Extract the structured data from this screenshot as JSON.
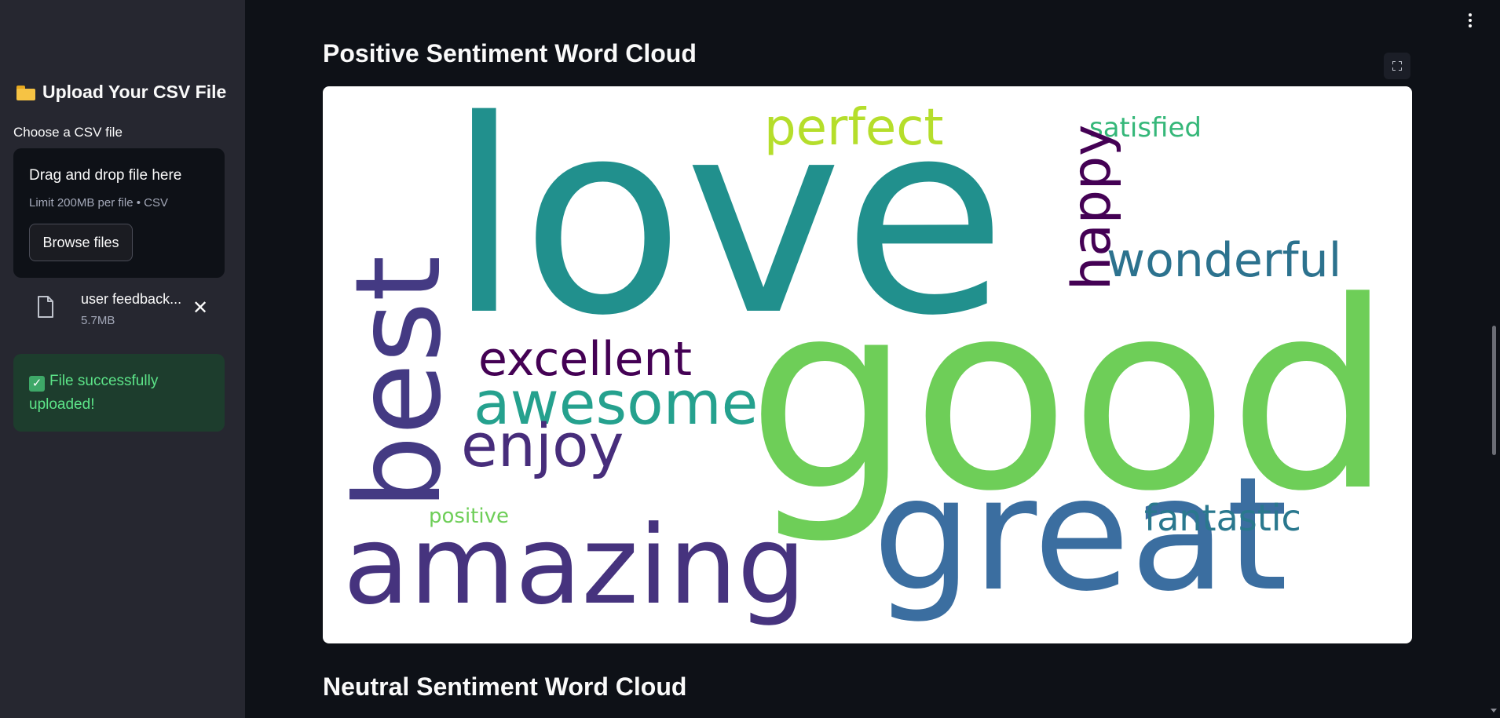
{
  "sidebar": {
    "title": "Upload Your CSV File",
    "choose_label": "Choose a CSV file",
    "dropzone": {
      "title": "Drag and drop file here",
      "limit": "Limit 200MB per file • CSV",
      "browse_label": "Browse files"
    },
    "file": {
      "name": "user feedback...",
      "size": "5.7MB"
    },
    "success_message": "File successfully uploaded!"
  },
  "main": {
    "positive_title": "Positive Sentiment Word Cloud",
    "neutral_title": "Neutral Sentiment Word Cloud"
  },
  "wordcloud": {
    "words": [
      {
        "text": "love",
        "color": "#21908d"
      },
      {
        "text": "good",
        "color": "#6ece58"
      },
      {
        "text": "great",
        "color": "#3b6ea0"
      },
      {
        "text": "best",
        "color": "#443a83"
      },
      {
        "text": "amazing",
        "color": "#46337e"
      },
      {
        "text": "perfect",
        "color": "#b5de2b"
      },
      {
        "text": "satisfied",
        "color": "#35b779"
      },
      {
        "text": "happy",
        "color": "#440154"
      },
      {
        "text": "wonderful",
        "color": "#2c728e"
      },
      {
        "text": "excellent",
        "color": "#440154"
      },
      {
        "text": "awesome",
        "color": "#25a18e"
      },
      {
        "text": "enjoy",
        "color": "#472d7b"
      },
      {
        "text": "fantastic",
        "color": "#2a788e"
      },
      {
        "text": "positive",
        "color": "#6ece58"
      }
    ]
  }
}
